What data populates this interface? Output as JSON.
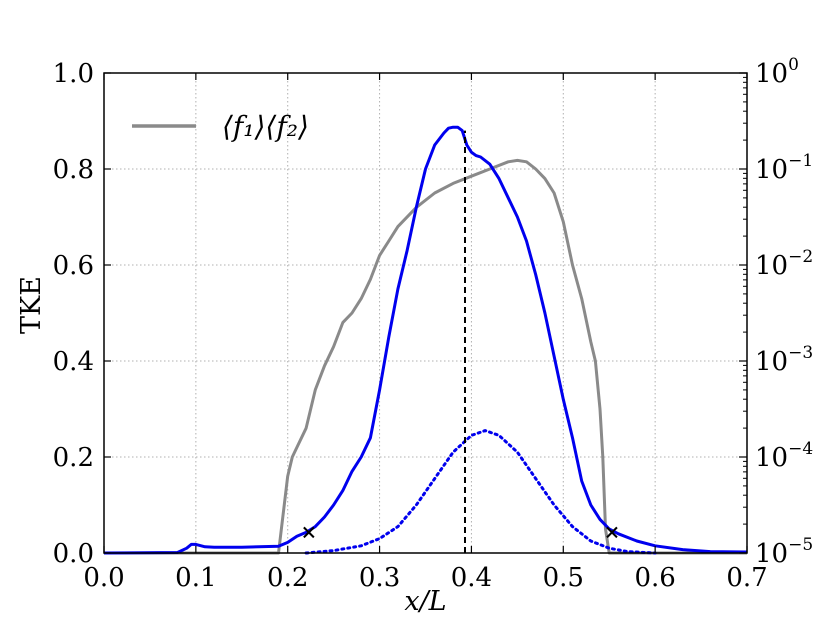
{
  "chart_data": {
    "type": "line",
    "xlabel": "x/L",
    "ylabel": "TKE",
    "xlim": [
      0.0,
      0.7
    ],
    "ylim": [
      0.0,
      1.0
    ],
    "y2lim_log10": [
      -5,
      0
    ],
    "y2scale": "log",
    "grid": true,
    "legend_position": "top-left",
    "x_ticks": [
      "0.0",
      "0.1",
      "0.2",
      "0.3",
      "0.4",
      "0.5",
      "0.6",
      "0.7"
    ],
    "y_ticks": [
      "0.0",
      "0.2",
      "0.4",
      "0.6",
      "0.8",
      "1.0"
    ],
    "y2_ticks": [
      {
        "base": "10",
        "exp": "−5"
      },
      {
        "base": "10",
        "exp": "−4"
      },
      {
        "base": "10",
        "exp": "−3"
      },
      {
        "base": "10",
        "exp": "−2"
      },
      {
        "base": "10",
        "exp": "−1"
      },
      {
        "base": "10",
        "exp": "0"
      }
    ],
    "series": [
      {
        "name": "⟨f₁⟩⟨f₂⟩",
        "axis": "left",
        "style": "solid",
        "color": "#8a8a8a",
        "x": [
          0.0,
          0.19,
          0.195,
          0.2,
          0.205,
          0.21,
          0.22,
          0.23,
          0.24,
          0.25,
          0.26,
          0.27,
          0.28,
          0.29,
          0.3,
          0.31,
          0.32,
          0.34,
          0.36,
          0.38,
          0.4,
          0.42,
          0.44,
          0.45,
          0.46,
          0.47,
          0.48,
          0.49,
          0.5,
          0.51,
          0.52,
          0.53,
          0.535,
          0.54,
          0.543,
          0.546,
          0.55,
          0.6,
          0.7
        ],
        "y": [
          0.0,
          0.0,
          0.08,
          0.16,
          0.2,
          0.22,
          0.26,
          0.34,
          0.39,
          0.43,
          0.48,
          0.5,
          0.53,
          0.57,
          0.62,
          0.65,
          0.68,
          0.72,
          0.75,
          0.77,
          0.785,
          0.8,
          0.815,
          0.818,
          0.815,
          0.8,
          0.78,
          0.75,
          0.69,
          0.6,
          0.53,
          0.44,
          0.4,
          0.3,
          0.2,
          0.05,
          0.0,
          0.0,
          0.0
        ]
      },
      {
        "name": "",
        "axis": "left",
        "style": "solid",
        "color": "#0000ee",
        "x": [
          0.0,
          0.08,
          0.09,
          0.095,
          0.1,
          0.11,
          0.12,
          0.15,
          0.19,
          0.2,
          0.21,
          0.22,
          0.23,
          0.24,
          0.25,
          0.26,
          0.27,
          0.28,
          0.29,
          0.3,
          0.31,
          0.32,
          0.33,
          0.34,
          0.35,
          0.36,
          0.37,
          0.375,
          0.38,
          0.385,
          0.39,
          0.395,
          0.4,
          0.405,
          0.41,
          0.42,
          0.43,
          0.44,
          0.45,
          0.46,
          0.47,
          0.48,
          0.49,
          0.5,
          0.51,
          0.52,
          0.53,
          0.54,
          0.55,
          0.56,
          0.58,
          0.6,
          0.63,
          0.66,
          0.7
        ],
        "y": [
          0.0,
          0.001,
          0.01,
          0.018,
          0.018,
          0.013,
          0.012,
          0.012,
          0.014,
          0.022,
          0.035,
          0.043,
          0.055,
          0.075,
          0.1,
          0.13,
          0.17,
          0.2,
          0.24,
          0.34,
          0.45,
          0.55,
          0.63,
          0.72,
          0.8,
          0.85,
          0.875,
          0.885,
          0.887,
          0.887,
          0.88,
          0.85,
          0.835,
          0.828,
          0.825,
          0.81,
          0.78,
          0.74,
          0.7,
          0.65,
          0.58,
          0.5,
          0.41,
          0.32,
          0.24,
          0.15,
          0.1,
          0.07,
          0.05,
          0.04,
          0.025,
          0.015,
          0.007,
          0.003,
          0.002
        ]
      },
      {
        "name": "",
        "axis": "left",
        "style": "dotted",
        "color": "#0000ee",
        "x": [
          0.22,
          0.25,
          0.28,
          0.3,
          0.32,
          0.34,
          0.36,
          0.38,
          0.4,
          0.415,
          0.43,
          0.45,
          0.47,
          0.49,
          0.51,
          0.53,
          0.55,
          0.57,
          0.6
        ],
        "y": [
          0.0,
          0.005,
          0.015,
          0.03,
          0.055,
          0.1,
          0.155,
          0.21,
          0.245,
          0.255,
          0.245,
          0.21,
          0.155,
          0.1,
          0.055,
          0.025,
          0.01,
          0.003,
          0.0
        ]
      }
    ],
    "vlines": [
      {
        "x": 0.393,
        "y_from": 0.0,
        "y_to": 0.88,
        "style": "dashed",
        "color": "#000000"
      }
    ],
    "markers": [
      {
        "x": 0.223,
        "y": 0.043,
        "symbol": "x"
      },
      {
        "x": 0.553,
        "y": 0.043,
        "symbol": "x"
      }
    ]
  }
}
